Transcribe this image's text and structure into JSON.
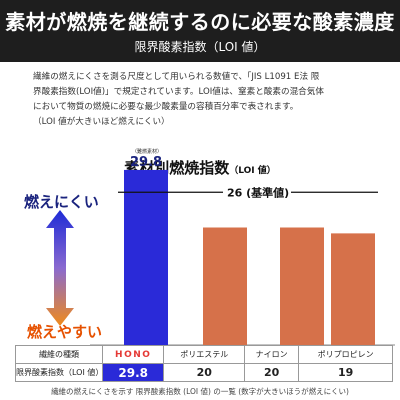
{
  "header": {
    "title": "素材が燃焼を継続するのに必要な酸素濃度",
    "subtitle": "限界酸素指数（LOI 値）"
  },
  "description": {
    "lines": [
      "繊維の燃えにくさを測る尺度として用いられる数値で、「JIS L1091 E法 限",
      "界酸素指数(LOI値)」で規定されています。LOI値は、窒素と酸素の混合気体",
      "において物質の燃焼に必要な最少酸素量の容積百分率で表されます。",
      "（LOI 値が大きいほど燃えにくい）"
    ]
  },
  "chart_data": {
    "type": "bar",
    "title": "素材別燃焼指数",
    "title_suffix": "（LOI 値）",
    "categories": [
      "HONO",
      "ポリエステル",
      "ナイロン",
      "ポリプロピレン"
    ],
    "values": [
      29.8,
      20,
      20,
      19
    ],
    "value_labels": [
      "29.8",
      "20",
      "20",
      "19"
    ],
    "highlight_note": "（難燃素材）",
    "reference_line": {
      "value": 26,
      "label": "26 (基準値)"
    },
    "ylim": [
      0,
      32
    ],
    "colors": {
      "highlight": "#2a2ad8",
      "other": "#d6714a",
      "reference": "#111111"
    }
  },
  "axis_labels": {
    "top": "燃えにくい",
    "bottom": "燃えやすい"
  },
  "table": {
    "row1_header": "繊維の種類",
    "row2_header": "限界酸素指数（LOI 値）",
    "values": [
      "29.8",
      "20",
      "20",
      "19"
    ]
  },
  "caption": "繊維の燃えにくさを示す 限界酸素指数 (LOI 値) の一覧 (数字が大きいほうが燃えにくい)"
}
